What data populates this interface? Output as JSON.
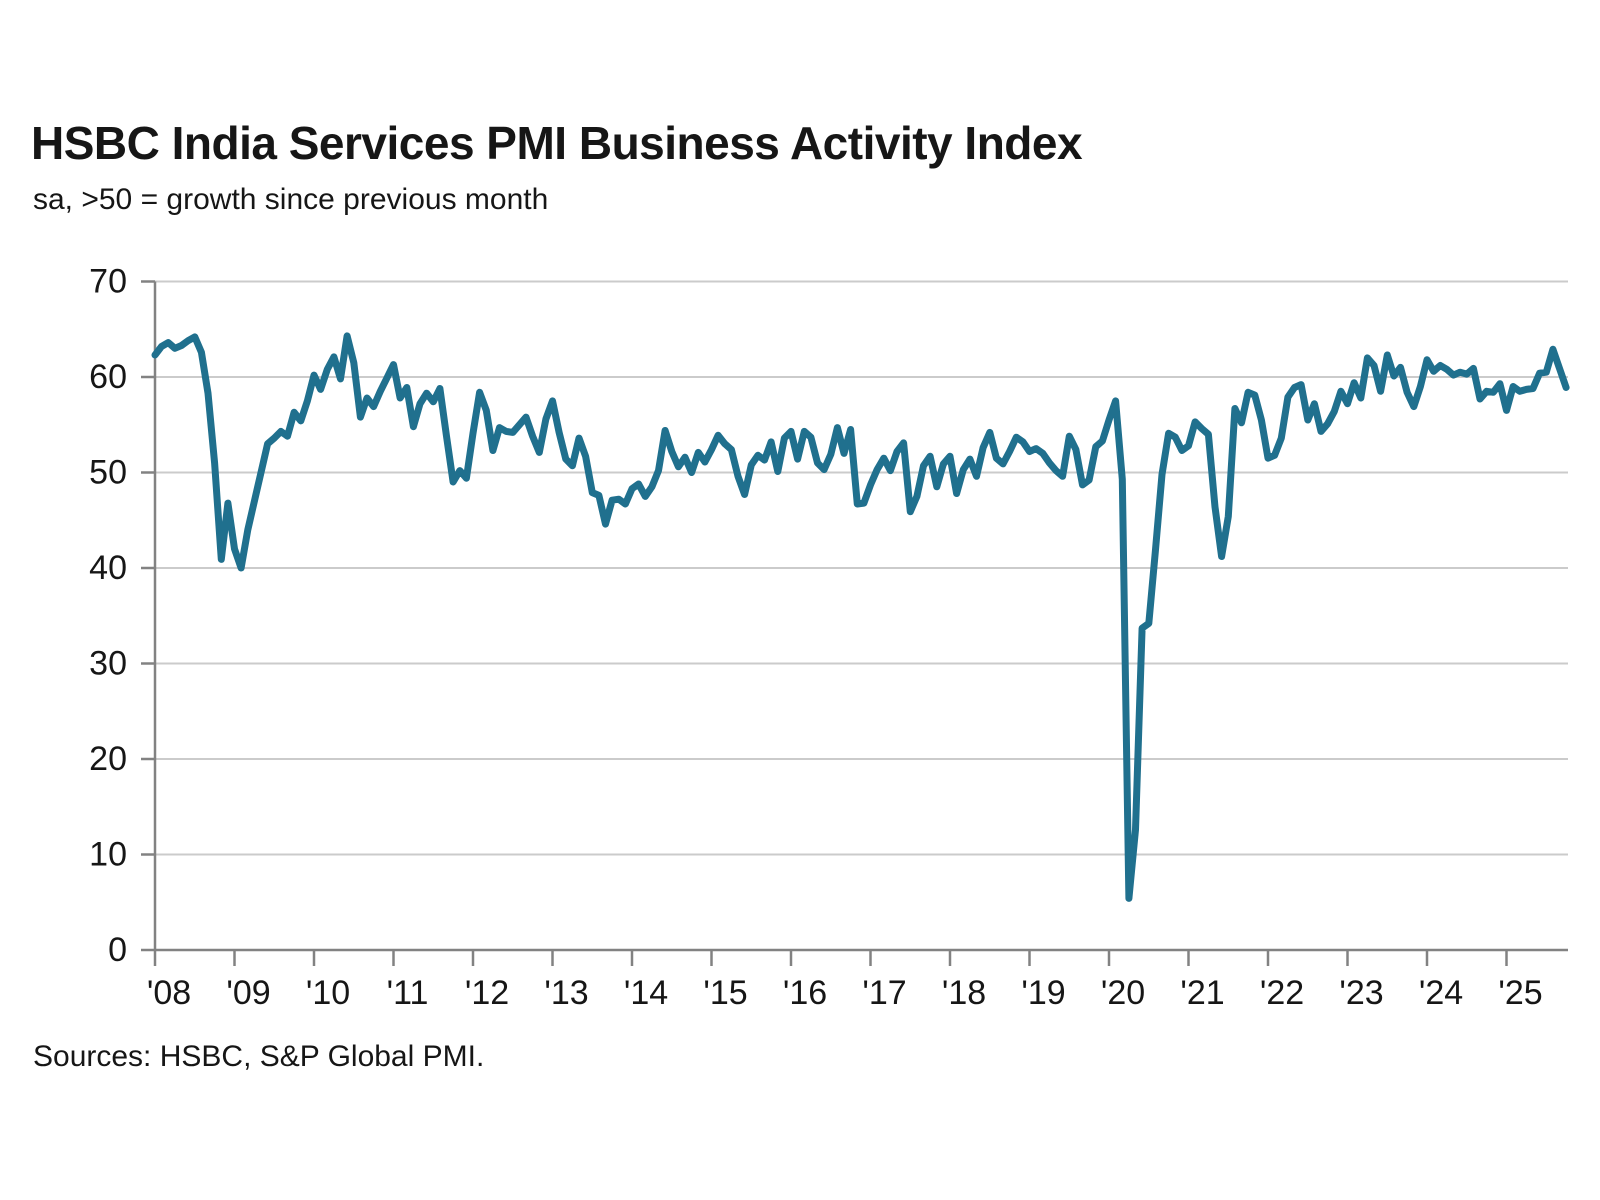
{
  "header": {
    "title": "HSBC India Services PMI Business Activity Index",
    "subtitle": "sa, >50 = growth since previous month"
  },
  "footer": {
    "source": "Sources: HSBC, S&P Global PMI."
  },
  "chart_data": {
    "type": "line",
    "title": "HSBC India Services PMI Business Activity Index",
    "subtitle": "sa, >50 = growth since previous month",
    "source": "Sources: HSBC, S&P Global PMI.",
    "legend": "none",
    "grid": "horizontal",
    "line_color": "#20708E",
    "gridline_color": "#cbcbcb",
    "axis_color": "#828282",
    "text_color": "#161616",
    "y_axis": {
      "min": 0,
      "max": 70,
      "tick_step": 10,
      "tick_labels": [
        "0",
        "10",
        "20",
        "30",
        "40",
        "50",
        "60",
        "70"
      ]
    },
    "x_axis": {
      "unit": "year",
      "tick_labels": [
        "'08",
        "'09",
        "'10",
        "'11",
        "'12",
        "'13",
        "'14",
        "'15",
        "'16",
        "'17",
        "'18",
        "'19",
        "'20",
        "'21",
        "'22",
        "'23",
        "'24",
        "'25"
      ]
    },
    "series": [
      {
        "name": "India Services PMI Business Activity Index (sa)",
        "start": "2008-01",
        "end": "2025-10",
        "frequency": "monthly",
        "values": [
          62.3,
          63.2,
          63.6,
          63.0,
          63.3,
          63.8,
          64.2,
          62.6,
          58.3,
          51.0,
          40.9,
          46.8,
          42.0,
          40.0,
          44.0,
          47.0,
          50.0,
          53.0,
          53.6,
          54.3,
          53.8,
          56.3,
          55.4,
          57.5,
          60.2,
          58.7,
          60.8,
          62.1,
          59.8,
          64.3,
          61.5,
          55.8,
          57.8,
          56.9,
          58.5,
          59.9,
          61.3,
          57.8,
          58.9,
          54.8,
          57.2,
          58.3,
          57.4,
          58.8,
          53.8,
          49.0,
          50.2,
          49.4,
          54.1,
          58.4,
          56.5,
          52.3,
          54.7,
          54.3,
          54.2,
          55.0,
          55.8,
          53.8,
          52.1,
          55.6,
          57.5,
          54.2,
          51.4,
          50.7,
          53.6,
          51.7,
          47.9,
          47.6,
          44.6,
          47.1,
          47.2,
          46.7,
          48.3,
          48.8,
          47.5,
          48.5,
          50.2,
          54.4,
          52.2,
          50.6,
          51.6,
          50.0,
          52.1,
          51.1,
          52.4,
          53.9,
          53.0,
          52.4,
          49.6,
          47.7,
          50.8,
          51.8,
          51.3,
          53.2,
          50.1,
          53.6,
          54.3,
          51.4,
          54.3,
          53.7,
          51.0,
          50.3,
          51.9,
          54.7,
          52.0,
          54.5,
          46.7,
          46.8,
          48.7,
          50.3,
          51.5,
          50.2,
          52.2,
          53.1,
          45.9,
          47.5,
          50.7,
          51.7,
          48.5,
          50.9,
          51.7,
          47.8,
          50.3,
          51.4,
          49.6,
          52.6,
          54.2,
          51.5,
          50.9,
          52.2,
          53.7,
          53.2,
          52.2,
          52.5,
          52.0,
          51.0,
          50.2,
          49.6,
          53.8,
          52.4,
          48.7,
          49.2,
          52.7,
          53.3,
          55.5,
          57.5,
          49.3,
          5.4,
          12.6,
          33.7,
          34.2,
          41.8,
          49.8,
          54.1,
          53.7,
          52.3,
          52.8,
          55.3,
          54.6,
          54.0,
          46.4,
          41.2,
          45.4,
          56.7,
          55.2,
          58.4,
          58.1,
          55.5,
          51.5,
          51.8,
          53.6,
          57.9,
          58.9,
          59.2,
          55.5,
          57.2,
          54.3,
          55.1,
          56.4,
          58.5,
          57.2,
          59.4,
          57.8,
          62.0,
          61.2,
          58.5,
          62.3,
          60.1,
          61.0,
          58.4,
          56.9,
          59.0,
          61.8,
          60.6,
          61.2,
          60.8,
          60.2,
          60.5,
          60.3,
          60.9,
          57.7,
          58.5,
          58.4,
          59.3,
          56.5,
          59.0,
          58.5,
          58.7,
          58.8,
          60.4,
          60.5,
          62.9,
          60.9,
          58.9
        ]
      }
    ]
  }
}
